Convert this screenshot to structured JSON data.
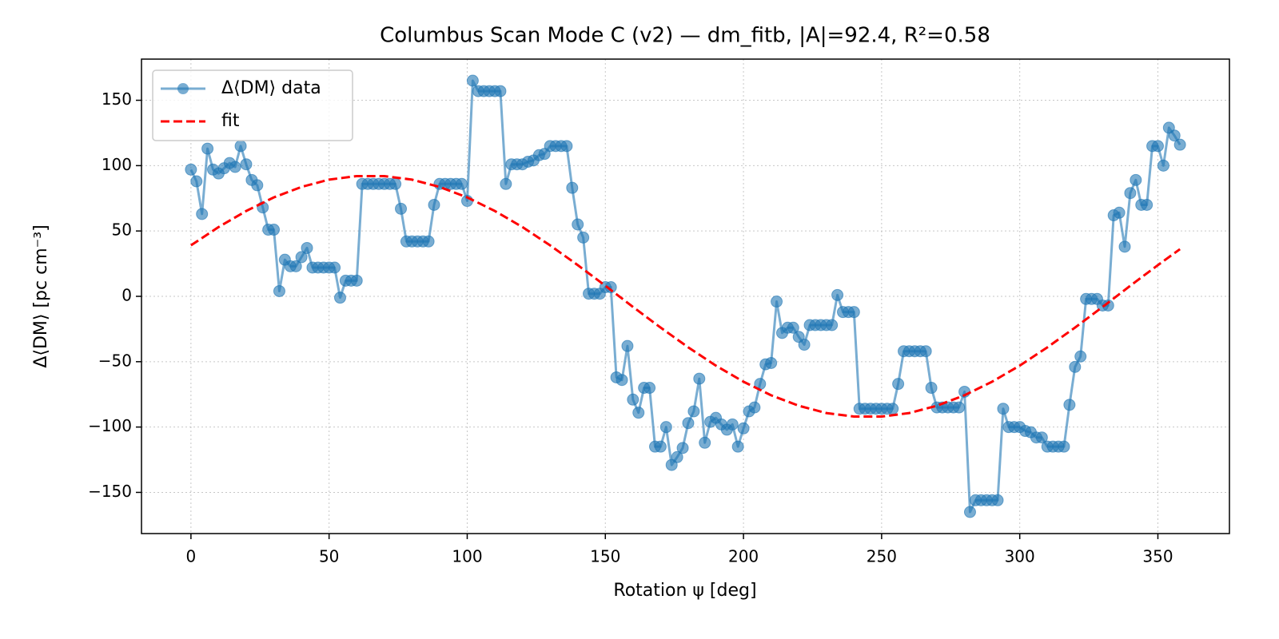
{
  "chart_data": {
    "type": "line",
    "title": "Columbus Scan Mode C (v2) — dm_fitb, |A|=92.4, R²=0.58",
    "xlabel": "Rotation ψ [deg]",
    "ylabel": "Δ⟨DM⟩ [pc cm⁻³]",
    "xlim": [
      -17.9,
      375.9
    ],
    "ylim": [
      -181.5,
      181.5
    ],
    "xticks": [
      0,
      50,
      100,
      150,
      200,
      250,
      300,
      350
    ],
    "yticks": [
      {
        "value": -150,
        "label": "−150"
      },
      {
        "value": -100,
        "label": "−100"
      },
      {
        "value": -50,
        "label": "−50"
      },
      0,
      50,
      100,
      150
    ],
    "grid": true,
    "legend": "upper left",
    "series": [
      {
        "name": "Δ⟨DM⟩ data",
        "color": "#1f77b4",
        "marker": "o",
        "linestyle": "solid",
        "x": [
          0,
          2,
          4,
          6,
          8,
          10,
          12,
          14,
          16,
          18,
          20,
          22,
          24,
          26,
          28,
          30,
          32,
          34,
          36,
          38,
          40,
          42,
          44,
          46,
          48,
          50,
          52,
          54,
          56,
          58,
          60,
          62,
          64,
          66,
          68,
          70,
          72,
          74,
          76,
          78,
          80,
          82,
          84,
          86,
          88,
          90,
          92,
          94,
          96,
          98,
          100,
          102,
          104,
          106,
          108,
          110,
          112,
          114,
          116,
          118,
          120,
          122,
          124,
          126,
          128,
          130,
          132,
          134,
          136,
          138,
          140,
          142,
          144,
          146,
          148,
          150,
          152,
          154,
          156,
          158,
          160,
          162,
          164,
          166,
          168,
          170,
          172,
          174,
          176,
          178,
          180,
          182,
          184,
          186,
          188,
          190,
          192,
          194,
          196,
          198,
          200,
          202,
          204,
          206,
          208,
          210,
          212,
          214,
          216,
          218,
          220,
          222,
          224,
          226,
          228,
          230,
          232,
          234,
          236,
          238,
          240,
          242,
          244,
          246,
          248,
          250,
          252,
          254,
          256,
          258,
          260,
          262,
          264,
          266,
          268,
          270,
          272,
          274,
          276,
          278,
          280,
          282,
          284,
          286,
          288,
          290,
          292,
          294,
          296,
          298,
          300,
          302,
          304,
          306,
          308,
          310,
          312,
          314,
          316,
          318,
          320,
          322,
          324,
          326,
          328,
          330,
          332,
          334,
          336,
          338,
          340,
          342,
          344,
          346,
          348,
          350,
          352,
          354,
          356,
          358
        ],
        "values": [
          97,
          88,
          63,
          113,
          97,
          94,
          98,
          102,
          99,
          115,
          101,
          89,
          85,
          68,
          51,
          51,
          4,
          28,
          23,
          23,
          30,
          37,
          22,
          22,
          22,
          22,
          22,
          -1,
          12,
          12,
          12,
          86,
          86,
          86,
          86,
          86,
          86,
          86,
          67,
          42,
          42,
          42,
          42,
          42,
          70,
          86,
          86,
          86,
          86,
          86,
          73,
          165,
          157,
          157,
          157,
          157,
          157,
          86,
          101,
          101,
          101,
          103,
          104,
          108,
          109,
          115,
          115,
          115,
          115,
          83,
          55,
          45,
          2,
          2,
          2,
          7,
          7,
          -62,
          -64,
          -38,
          -79,
          -89,
          -70,
          -70,
          -115,
          -115,
          -100,
          -129,
          -123,
          -116,
          -97,
          -88,
          -63,
          -112,
          -96,
          -93,
          -98,
          -102,
          -98,
          -115,
          -101,
          -88,
          -85,
          -67,
          -52,
          -51,
          -4,
          -28,
          -24,
          -24,
          -31,
          -37,
          -22,
          -22,
          -22,
          -22,
          -22,
          1,
          -12,
          -12,
          -12,
          -86,
          -86,
          -86,
          -86,
          -86,
          -86,
          -86,
          -67,
          -42,
          -42,
          -42,
          -42,
          -42,
          -70,
          -85,
          -85,
          -85,
          -85,
          -85,
          -73,
          -165,
          -156,
          -156,
          -156,
          -156,
          -156,
          -86,
          -100,
          -100,
          -100,
          -103,
          -104,
          -108,
          -108,
          -115,
          -115,
          -115,
          -115,
          -83,
          -54,
          -46,
          -2,
          -2,
          -2,
          -7,
          -7,
          62,
          64,
          38,
          79,
          89,
          70,
          70,
          115,
          115,
          100,
          129,
          123,
          116
        ]
      },
      {
        "name": "fit",
        "color": "#ff0000",
        "linestyle": "dashed",
        "x": [
          0,
          10,
          20,
          30,
          40,
          50,
          60,
          70,
          80,
          90,
          100,
          110,
          120,
          130,
          140,
          150,
          160,
          170,
          180,
          190,
          200,
          210,
          220,
          230,
          240,
          250,
          260,
          270,
          280,
          290,
          300,
          310,
          320,
          330,
          340,
          350,
          358
        ],
        "values": [
          39.0,
          53.0,
          65.3,
          75.7,
          83.7,
          89.3,
          92.0,
          92.0,
          89.3,
          83.7,
          75.7,
          65.3,
          53.0,
          39.0,
          23.9,
          8.1,
          -8.1,
          -23.9,
          -39.0,
          -53.0,
          -65.3,
          -75.7,
          -83.7,
          -89.3,
          -92.0,
          -92.0,
          -89.3,
          -83.7,
          -75.7,
          -65.3,
          -53.0,
          -39.0,
          -23.9,
          -8.1,
          8.1,
          23.9,
          36.1
        ]
      }
    ]
  }
}
